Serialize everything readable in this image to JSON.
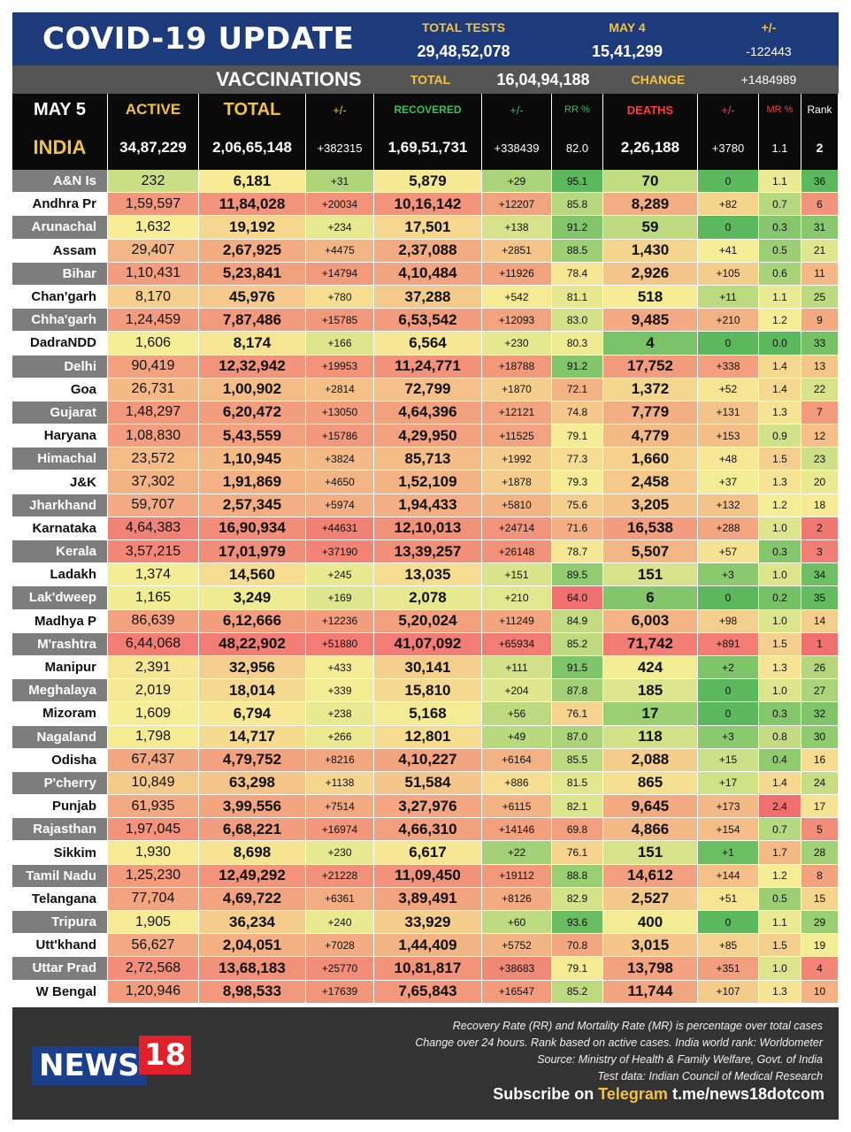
{
  "header": {
    "title": "COVID-19 UPDATE",
    "total_tests_label": "TOTAL TESTS",
    "total_tests_value": "29,48,52,078",
    "may4_label": "MAY 4",
    "may4_value": "15,41,299",
    "pm_label": "+/-",
    "pm_value": "-122443"
  },
  "vaccinations": {
    "label": "VACCINATIONS",
    "total_label": "TOTAL",
    "total_value": "16,04,94,188",
    "change_label": "CHANGE",
    "change_value": "+1484989"
  },
  "columns": {
    "date": "MAY 5",
    "active": "ACTIVE",
    "total": "TOTAL",
    "total_inc": "+/-",
    "recovered": "RECOVERED",
    "rec_inc": "+/-",
    "rr": "RR %",
    "deaths": "DEATHS",
    "death_inc": "+/-",
    "mr": "MR %",
    "rank": "Rank"
  },
  "india": {
    "name": "INDIA",
    "active": "34,87,229",
    "total": "2,06,65,148",
    "total_inc": "+382315",
    "recovered": "1,69,51,731",
    "rec_inc": "+338439",
    "rr": "82.0",
    "deaths": "2,26,188",
    "death_inc": "+3780",
    "mr": "1.1",
    "rank": "2"
  },
  "states": [
    {
      "name": "A&N Is",
      "active": "232",
      "total": "6,181",
      "total_inc": "+31",
      "recovered": "5,879",
      "rec_inc": "+29",
      "rr": "95.1",
      "deaths": "70",
      "death_inc": "0",
      "mr": "1.1",
      "rank": "36"
    },
    {
      "name": "Andhra Pr",
      "active": "1,59,597",
      "total": "11,84,028",
      "total_inc": "+20034",
      "recovered": "10,16,142",
      "rec_inc": "+12207",
      "rr": "85.8",
      "deaths": "8,289",
      "death_inc": "+82",
      "mr": "0.7",
      "rank": "6"
    },
    {
      "name": "Arunachal",
      "active": "1,632",
      "total": "19,192",
      "total_inc": "+234",
      "recovered": "17,501",
      "rec_inc": "+138",
      "rr": "91.2",
      "deaths": "59",
      "death_inc": "0",
      "mr": "0.3",
      "rank": "31"
    },
    {
      "name": "Assam",
      "active": "29,407",
      "total": "2,67,925",
      "total_inc": "+4475",
      "recovered": "2,37,088",
      "rec_inc": "+2851",
      "rr": "88.5",
      "deaths": "1,430",
      "death_inc": "+41",
      "mr": "0.5",
      "rank": "21"
    },
    {
      "name": "Bihar",
      "active": "1,10,431",
      "total": "5,23,841",
      "total_inc": "+14794",
      "recovered": "4,10,484",
      "rec_inc": "+11926",
      "rr": "78.4",
      "deaths": "2,926",
      "death_inc": "+105",
      "mr": "0.6",
      "rank": "11"
    },
    {
      "name": "Chan'garh",
      "active": "8,170",
      "total": "45,976",
      "total_inc": "+780",
      "recovered": "37,288",
      "rec_inc": "+542",
      "rr": "81.1",
      "deaths": "518",
      "death_inc": "+11",
      "mr": "1.1",
      "rank": "25"
    },
    {
      "name": "Chha'garh",
      "active": "1,24,459",
      "total": "7,87,486",
      "total_inc": "+15785",
      "recovered": "6,53,542",
      "rec_inc": "+12093",
      "rr": "83.0",
      "deaths": "9,485",
      "death_inc": "+210",
      "mr": "1.2",
      "rank": "9"
    },
    {
      "name": "DadraNDD",
      "active": "1,606",
      "total": "8,174",
      "total_inc": "+166",
      "recovered": "6,564",
      "rec_inc": "+230",
      "rr": "80.3",
      "deaths": "4",
      "death_inc": "0",
      "mr": "0.0",
      "rank": "33"
    },
    {
      "name": "Delhi",
      "active": "90,419",
      "total": "12,32,942",
      "total_inc": "+19953",
      "recovered": "11,24,771",
      "rec_inc": "+18788",
      "rr": "91.2",
      "deaths": "17,752",
      "death_inc": "+338",
      "mr": "1.4",
      "rank": "13"
    },
    {
      "name": "Goa",
      "active": "26,731",
      "total": "1,00,902",
      "total_inc": "+2814",
      "recovered": "72,799",
      "rec_inc": "+1870",
      "rr": "72.1",
      "deaths": "1,372",
      "death_inc": "+52",
      "mr": "1.4",
      "rank": "22"
    },
    {
      "name": "Gujarat",
      "active": "1,48,297",
      "total": "6,20,472",
      "total_inc": "+13050",
      "recovered": "4,64,396",
      "rec_inc": "+12121",
      "rr": "74.8",
      "deaths": "7,779",
      "death_inc": "+131",
      "mr": "1.3",
      "rank": "7"
    },
    {
      "name": "Haryana",
      "active": "1,08,830",
      "total": "5,43,559",
      "total_inc": "+15786",
      "recovered": "4,29,950",
      "rec_inc": "+11525",
      "rr": "79.1",
      "deaths": "4,779",
      "death_inc": "+153",
      "mr": "0.9",
      "rank": "12"
    },
    {
      "name": "Himachal",
      "active": "23,572",
      "total": "1,10,945",
      "total_inc": "+3824",
      "recovered": "85,713",
      "rec_inc": "+1992",
      "rr": "77.3",
      "deaths": "1,660",
      "death_inc": "+48",
      "mr": "1.5",
      "rank": "23"
    },
    {
      "name": "J&K",
      "active": "37,302",
      "total": "1,91,869",
      "total_inc": "+4650",
      "recovered": "1,52,109",
      "rec_inc": "+1878",
      "rr": "79.3",
      "deaths": "2,458",
      "death_inc": "+37",
      "mr": "1.3",
      "rank": "20"
    },
    {
      "name": "Jharkhand",
      "active": "59,707",
      "total": "2,57,345",
      "total_inc": "+5974",
      "recovered": "1,94,433",
      "rec_inc": "+5810",
      "rr": "75.6",
      "deaths": "3,205",
      "death_inc": "+132",
      "mr": "1.2",
      "rank": "18"
    },
    {
      "name": "Karnataka",
      "active": "4,64,383",
      "total": "16,90,934",
      "total_inc": "+44631",
      "recovered": "12,10,013",
      "rec_inc": "+24714",
      "rr": "71.6",
      "deaths": "16,538",
      "death_inc": "+288",
      "mr": "1.0",
      "rank": "2"
    },
    {
      "name": "Kerala",
      "active": "3,57,215",
      "total": "17,01,979",
      "total_inc": "+37190",
      "recovered": "13,39,257",
      "rec_inc": "+26148",
      "rr": "78.7",
      "deaths": "5,507",
      "death_inc": "+57",
      "mr": "0.3",
      "rank": "3"
    },
    {
      "name": "Ladakh",
      "active": "1,374",
      "total": "14,560",
      "total_inc": "+245",
      "recovered": "13,035",
      "rec_inc": "+151",
      "rr": "89.5",
      "deaths": "151",
      "death_inc": "+3",
      "mr": "1.0",
      "rank": "34"
    },
    {
      "name": "Lak'dweep",
      "active": "1,165",
      "total": "3,249",
      "total_inc": "+169",
      "recovered": "2,078",
      "rec_inc": "+210",
      "rr": "64.0",
      "deaths": "6",
      "death_inc": "0",
      "mr": "0.2",
      "rank": "35"
    },
    {
      "name": "Madhya P",
      "active": "86,639",
      "total": "6,12,666",
      "total_inc": "+12236",
      "recovered": "5,20,024",
      "rec_inc": "+11249",
      "rr": "84.9",
      "deaths": "6,003",
      "death_inc": "+98",
      "mr": "1.0",
      "rank": "14"
    },
    {
      "name": "M'rashtra",
      "active": "6,44,068",
      "total": "48,22,902",
      "total_inc": "+51880",
      "recovered": "41,07,092",
      "rec_inc": "+65934",
      "rr": "85.2",
      "deaths": "71,742",
      "death_inc": "+891",
      "mr": "1.5",
      "rank": "1"
    },
    {
      "name": "Manipur",
      "active": "2,391",
      "total": "32,956",
      "total_inc": "+433",
      "recovered": "30,141",
      "rec_inc": "+111",
      "rr": "91.5",
      "deaths": "424",
      "death_inc": "+2",
      "mr": "1.3",
      "rank": "26"
    },
    {
      "name": "Meghalaya",
      "active": "2,019",
      "total": "18,014",
      "total_inc": "+339",
      "recovered": "15,810",
      "rec_inc": "+204",
      "rr": "87.8",
      "deaths": "185",
      "death_inc": "0",
      "mr": "1.0",
      "rank": "27"
    },
    {
      "name": "Mizoram",
      "active": "1,609",
      "total": "6,794",
      "total_inc": "+238",
      "recovered": "5,168",
      "rec_inc": "+56",
      "rr": "76.1",
      "deaths": "17",
      "death_inc": "0",
      "mr": "0.3",
      "rank": "32"
    },
    {
      "name": "Nagaland",
      "active": "1,798",
      "total": "14,717",
      "total_inc": "+266",
      "recovered": "12,801",
      "rec_inc": "+49",
      "rr": "87.0",
      "deaths": "118",
      "death_inc": "+3",
      "mr": "0.8",
      "rank": "30"
    },
    {
      "name": "Odisha",
      "active": "67,437",
      "total": "4,79,752",
      "total_inc": "+8216",
      "recovered": "4,10,227",
      "rec_inc": "+6164",
      "rr": "85.5",
      "deaths": "2,088",
      "death_inc": "+15",
      "mr": "0.4",
      "rank": "16"
    },
    {
      "name": "P'cherry",
      "active": "10,849",
      "total": "63,298",
      "total_inc": "+1138",
      "recovered": "51,584",
      "rec_inc": "+886",
      "rr": "81.5",
      "deaths": "865",
      "death_inc": "+17",
      "mr": "1.4",
      "rank": "24"
    },
    {
      "name": "Punjab",
      "active": "61,935",
      "total": "3,99,556",
      "total_inc": "+7514",
      "recovered": "3,27,976",
      "rec_inc": "+6115",
      "rr": "82.1",
      "deaths": "9,645",
      "death_inc": "+173",
      "mr": "2.4",
      "rank": "17"
    },
    {
      "name": "Rajasthan",
      "active": "1,97,045",
      "total": "6,68,221",
      "total_inc": "+16974",
      "recovered": "4,66,310",
      "rec_inc": "+14146",
      "rr": "69.8",
      "deaths": "4,866",
      "death_inc": "+154",
      "mr": "0.7",
      "rank": "5"
    },
    {
      "name": "Sikkim",
      "active": "1,930",
      "total": "8,698",
      "total_inc": "+230",
      "recovered": "6,617",
      "rec_inc": "+22",
      "rr": "76.1",
      "deaths": "151",
      "death_inc": "+1",
      "mr": "1.7",
      "rank": "28"
    },
    {
      "name": "Tamil Nadu",
      "active": "1,25,230",
      "total": "12,49,292",
      "total_inc": "+21228",
      "recovered": "11,09,450",
      "rec_inc": "+19112",
      "rr": "88.8",
      "deaths": "14,612",
      "death_inc": "+144",
      "mr": "1.2",
      "rank": "8"
    },
    {
      "name": "Telangana",
      "active": "77,704",
      "total": "4,69,722",
      "total_inc": "+6361",
      "recovered": "3,89,491",
      "rec_inc": "+8126",
      "rr": "82.9",
      "deaths": "2,527",
      "death_inc": "+51",
      "mr": "0.5",
      "rank": "15"
    },
    {
      "name": "Tripura",
      "active": "1,905",
      "total": "36,234",
      "total_inc": "+240",
      "recovered": "33,929",
      "rec_inc": "+60",
      "rr": "93.6",
      "deaths": "400",
      "death_inc": "0",
      "mr": "1.1",
      "rank": "29"
    },
    {
      "name": "Utt'khand",
      "active": "56,627",
      "total": "2,04,051",
      "total_inc": "+7028",
      "recovered": "1,44,409",
      "rec_inc": "+5752",
      "rr": "70.8",
      "deaths": "3,015",
      "death_inc": "+85",
      "mr": "1.5",
      "rank": "19"
    },
    {
      "name": "Uttar Prad",
      "active": "2,72,568",
      "total": "13,68,183",
      "total_inc": "+25770",
      "recovered": "10,81,817",
      "rec_inc": "+38683",
      "rr": "79.1",
      "deaths": "13,798",
      "death_inc": "+351",
      "mr": "1.0",
      "rank": "4"
    },
    {
      "name": "W Bengal",
      "active": "1,20,946",
      "total": "8,98,533",
      "total_inc": "+17639",
      "recovered": "7,65,843",
      "rec_inc": "+16547",
      "rr": "85.2",
      "deaths": "11,744",
      "death_inc": "+107",
      "mr": "1.3",
      "rank": "10"
    }
  ],
  "footer": {
    "logo_text": "NEWS",
    "logo_num": "18",
    "note1": "Recovery Rate (RR) and Mortality Rate (MR) is percentage over total cases",
    "note2": "Change over 24 hours. Rank based on active cases. India world rank: Worldometer",
    "note3": "Source: Ministry of Health & Family Welfare, Govt. of India",
    "note4": "Test data: Indian Council of Medical Research",
    "subscribe_prefix": "Subscribe on",
    "subscribe_platform": "Telegram",
    "subscribe_link": "t.me/news18dotcom"
  },
  "colors": {
    "title_bg": "#1d3a7a",
    "accent_yellow": "#f4c242",
    "green_header": "#33c15a",
    "red_header": "#ff3b3b",
    "good": "#5cb85c",
    "bad": "#f07070"
  }
}
